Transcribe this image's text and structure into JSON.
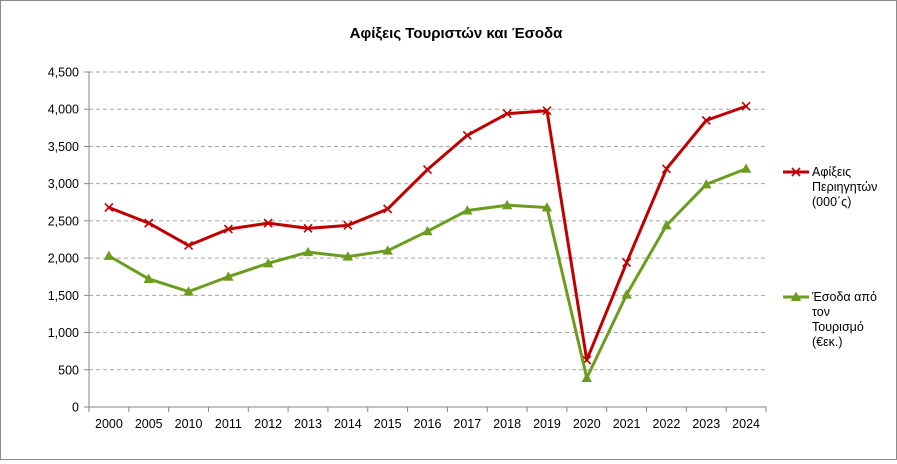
{
  "chart_data": {
    "type": "line",
    "title": "Αφίξεις Τουριστών και Έσοδα",
    "xlabel": "",
    "ylabel": "",
    "ylim": [
      0,
      4500
    ],
    "y_ticks": [
      "0",
      "500",
      "1,000",
      "1,500",
      "2,000",
      "2,500",
      "3,000",
      "3,500",
      "4,000",
      "4,500"
    ],
    "y_tick_values": [
      0,
      500,
      1000,
      1500,
      2000,
      2500,
      3000,
      3500,
      4000,
      4500
    ],
    "categories": [
      "2000",
      "2005",
      "2010",
      "2011",
      "2012",
      "2013",
      "2014",
      "2015",
      "2016",
      "2017",
      "2018",
      "2019",
      "2020",
      "2021",
      "2022",
      "2023",
      "2024"
    ],
    "grid": true,
    "legend_position": "right",
    "series": [
      {
        "name_lines": [
          "Αφίξεις",
          "Περιηγητών",
          "(000΄ς)"
        ],
        "color": "#c00000",
        "marker": "x",
        "values": [
          2680,
          2470,
          2170,
          2390,
          2470,
          2400,
          2440,
          2660,
          3190,
          3650,
          3940,
          3980,
          630,
          1940,
          3200,
          3850,
          4040
        ]
      },
      {
        "name_lines": [
          "Έσοδα από",
          "τον",
          "Τουρισμό",
          "(€εκ.)"
        ],
        "color": "#6b9c1f",
        "marker": "triangle",
        "values": [
          2030,
          1720,
          1550,
          1750,
          1930,
          2080,
          2020,
          2100,
          2360,
          2640,
          2710,
          2680,
          390,
          1510,
          2440,
          2990,
          3200
        ]
      }
    ]
  }
}
